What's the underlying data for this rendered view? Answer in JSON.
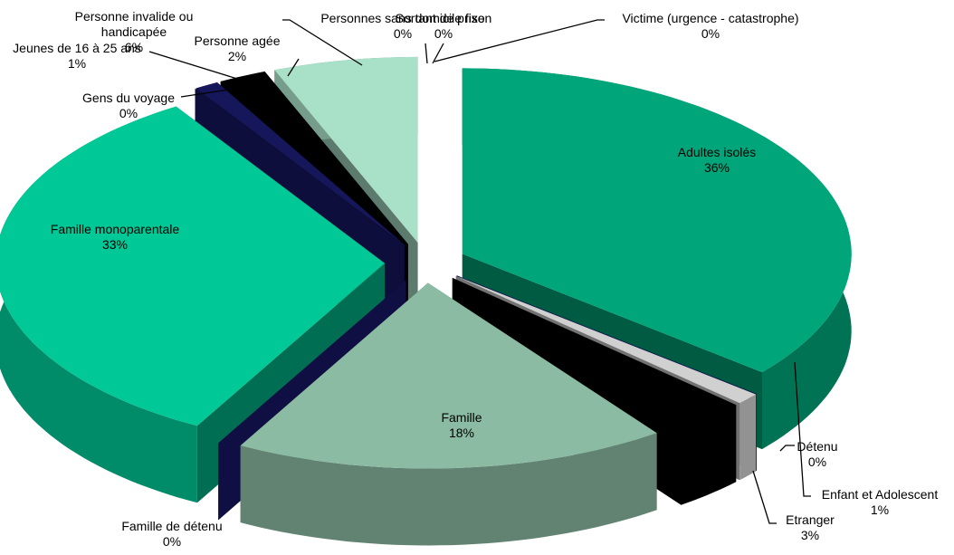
{
  "chart_data": {
    "type": "pie",
    "categories": [
      "Adultes isolés",
      "Détenu",
      "Enfant et Adolescent",
      "Etranger",
      "Famille",
      "Famille de détenu",
      "Famille monoparentale",
      "Gens du voyage",
      "Jeunes de 16 à 25 ans",
      "Personne agée",
      "Personne invalide ou handicapée",
      "Personnes sans domicile fixe",
      "Sortant de prison",
      "Victime (urgence - catastrophe)"
    ],
    "values": [
      36,
      0,
      1,
      3,
      18,
      0,
      33,
      0,
      1,
      2,
      6,
      0,
      0,
      0
    ],
    "value_labels": [
      "36%",
      "0%",
      "1%",
      "3%",
      "18%",
      "0%",
      "33%",
      "0%",
      "1%",
      "2%",
      "6%",
      "0%",
      "0%",
      "0%"
    ],
    "colors": [
      "#00a57a",
      "#1a2a8c",
      "#d0d0d0",
      "#000000",
      "#8cbba3",
      "#1c1c7c",
      "#00c896",
      "#1a1a6e",
      "#16165a",
      "#000000",
      "#a8e0c8",
      "#1f2d8a",
      "#4a6fd0",
      "#9fb5e8"
    ]
  }
}
